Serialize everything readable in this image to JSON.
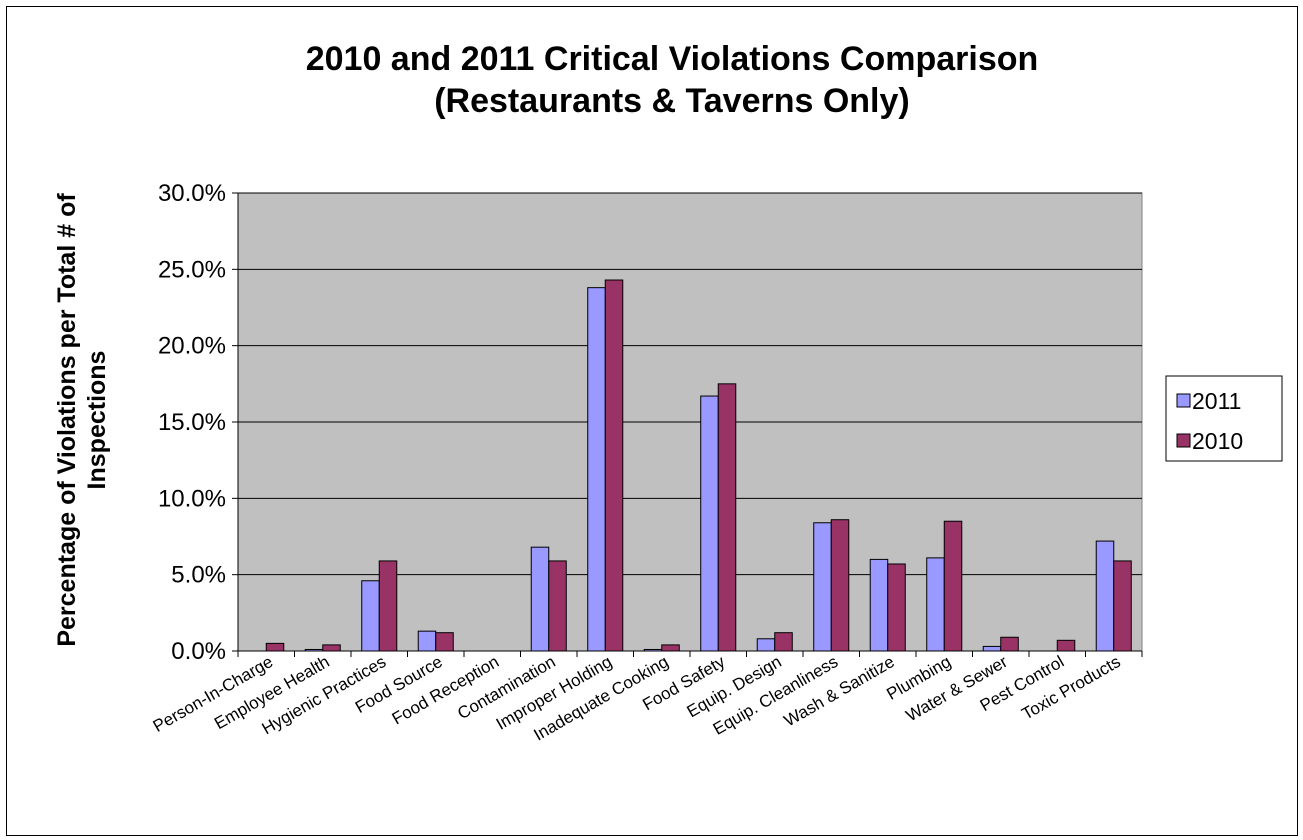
{
  "chart_data": {
    "type": "bar",
    "title_lines": [
      "2010 and 2011 Critical Violations Comparison",
      "(Restaurants & Taverns Only)"
    ],
    "xlabel": "",
    "ylabel_lines": [
      "Percentage of Violations per Total # of",
      "Inspections"
    ],
    "ylim": [
      0,
      30
    ],
    "yticks": [
      "0.0%",
      "5.0%",
      "10.0%",
      "15.0%",
      "20.0%",
      "25.0%",
      "30.0%"
    ],
    "grid": true,
    "legend_position": "right",
    "categories": [
      "Person-In-Charge",
      "Employee Health",
      "Hygienic Practices",
      "Food Source",
      "Food Reception",
      "Contamination",
      "Improper Holding",
      "Inadequate Cooking",
      "Food Safety",
      "Equip. Design",
      "Equip. Cleanliness",
      "Wash & Sanitize",
      "Plumbing",
      "Water & Sewer",
      "Pest Control",
      "Toxic Products"
    ],
    "series": [
      {
        "name": "2011",
        "color": "#9999ff",
        "values": [
          0.0,
          0.1,
          4.6,
          1.3,
          0.0,
          6.8,
          23.8,
          0.1,
          16.7,
          0.8,
          8.4,
          6.0,
          6.1,
          0.3,
          0.0,
          7.2
        ]
      },
      {
        "name": "2010",
        "color": "#993366",
        "values": [
          0.5,
          0.4,
          5.9,
          1.2,
          0.0,
          5.9,
          24.3,
          0.4,
          17.5,
          1.2,
          8.6,
          5.7,
          8.5,
          0.9,
          0.7,
          5.9
        ]
      }
    ],
    "plot_background": "#c0c0c0"
  }
}
